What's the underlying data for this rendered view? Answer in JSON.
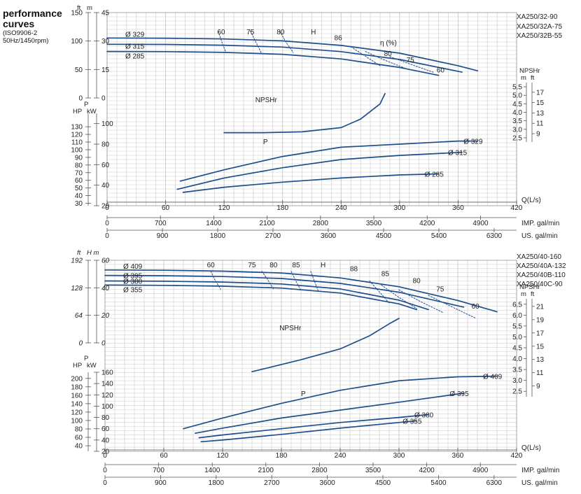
{
  "header": {
    "title_line1": "performance",
    "title_line2": "curves",
    "standard": "(ISO9906-2",
    "conditions": "50Hz/1450rpm)"
  },
  "colors": {
    "curve": "#1f4e8c",
    "grid": "#c8c8c8",
    "axis": "#555555",
    "text": "#222222"
  },
  "chart_data": [
    {
      "type": "line",
      "models": [
        "XA250/32-90",
        "XA250/32A-75",
        "XA250/32B-55"
      ],
      "x_units": {
        "label": "Q(L/s)",
        "ticks": [
          0,
          60,
          120,
          180,
          240,
          300,
          360,
          420
        ],
        "xlim": [
          0,
          420
        ]
      },
      "x_imp": {
        "label": "IMP. gal/min",
        "ticks": [
          0,
          700,
          1400,
          2100,
          2800,
          3500,
          4200,
          4900
        ]
      },
      "x_us": {
        "label": "US. gal/min",
        "ticks": [
          0,
          900,
          1800,
          2700,
          3600,
          4500,
          5400,
          6300
        ]
      },
      "head_axis": {
        "unit_ft": "ft",
        "unit_m": "m",
        "ft_ticks": [
          0,
          50,
          100,
          150
        ],
        "m_ticks": [
          0,
          15,
          30,
          45
        ],
        "ylim_m": [
          0,
          45
        ]
      },
      "power_axis": {
        "unit_hp": "HP",
        "unit_p": "P",
        "unit_kw": "kW",
        "hp_ticks": [
          30,
          40,
          50,
          60,
          70,
          80,
          90,
          100,
          110,
          120,
          130
        ],
        "kw_ticks": [
          20,
          40,
          60,
          80,
          100
        ],
        "ylim_kw": [
          20,
          110
        ]
      },
      "npsh_axis": {
        "label": "NPSHr",
        "unit_m": "m",
        "unit_ft": "ft",
        "m_ticks": [
          2.5,
          3.0,
          3.5,
          4.0,
          4.5,
          5.0,
          5.5
        ],
        "ft_ticks": [
          9,
          11,
          13,
          15,
          17
        ],
        "ylim_m": [
          2.25,
          5.75
        ]
      },
      "head_series": [
        {
          "name": "Ø 329",
          "x": [
            0,
            60,
            120,
            180,
            240,
            300,
            360,
            380
          ],
          "y": [
            31.6,
            31.5,
            31.1,
            30.1,
            27.7,
            23.6,
            17.0,
            14.3
          ]
        },
        {
          "name": "Ø 315",
          "x": [
            0,
            60,
            120,
            180,
            240,
            300,
            364
          ],
          "y": [
            28.3,
            28.2,
            27.8,
            26.8,
            24.4,
            20.3,
            13.6
          ]
        },
        {
          "name": "Ø 285",
          "x": [
            0,
            60,
            120,
            180,
            240,
            300,
            340
          ],
          "y": [
            24.5,
            24.4,
            24.0,
            23.0,
            20.6,
            16.1,
            11.9
          ]
        }
      ],
      "power_series": [
        {
          "name": "Ø 329",
          "x": [
            75,
            120,
            180,
            240,
            300,
            360,
            380
          ],
          "y": [
            44,
            55,
            68,
            77,
            80,
            83,
            83
          ]
        },
        {
          "name": "Ø 315",
          "x": [
            72,
            120,
            180,
            240,
            300,
            364
          ],
          "y": [
            36,
            47,
            57,
            65,
            69,
            72
          ]
        },
        {
          "name": "Ø 285",
          "x": [
            78,
            120,
            180,
            240,
            300,
            340
          ],
          "y": [
            33,
            38,
            43,
            47,
            50,
            51
          ]
        }
      ],
      "npsh_series": [
        {
          "name": "NPSHr",
          "x": [
            120,
            160,
            200,
            240,
            260,
            280,
            285
          ],
          "y": [
            2.8,
            2.8,
            2.85,
            3.1,
            3.6,
            4.5,
            5.1
          ]
        }
      ],
      "efficiency_lines": [
        {
          "label": "60",
          "x": [
            114,
            118,
            122
          ],
          "y": [
            35.2,
            29.0,
            23.9
          ]
        },
        {
          "label": "75",
          "x": [
            147,
            153,
            158
          ],
          "y": [
            35.2,
            29.0,
            23.9
          ]
        },
        {
          "label": "80",
          "x": [
            177,
            184,
            191
          ],
          "y": [
            35.2,
            29.0,
            23.9
          ]
        },
        {
          "label": "80",
          "x": [
            250,
            265,
            280
          ],
          "y": [
            27.0,
            22.0,
            17.0
          ]
        },
        {
          "label": "75",
          "x": [
            265,
            282,
            305
          ],
          "y": [
            24.5,
            20.5,
            15.8
          ]
        },
        {
          "label": "60",
          "x": [
            290,
            310,
            335
          ],
          "y": [
            21.8,
            18.0,
            13.5
          ]
        }
      ],
      "labels": {
        "H": "H",
        "P": "P",
        "eta": "η (%)",
        "NPSHr": "NPSHr",
        "eta_86": "86",
        "eta_80": "80",
        "eta_75": "75",
        "eta_60": "60"
      }
    },
    {
      "type": "line",
      "models": [
        "XA250/40-160",
        "XA250/40A-132",
        "XA250/40B-110",
        "XA250/40C-90"
      ],
      "x_units": {
        "label": "Q(L/s)",
        "ticks": [
          0,
          60,
          120,
          180,
          240,
          300,
          360,
          420
        ],
        "xlim": [
          0,
          420
        ]
      },
      "x_imp": {
        "label": "IMP. gal/min",
        "ticks": [
          0,
          700,
          1400,
          2100,
          2800,
          3500,
          4200,
          4900
        ]
      },
      "x_us": {
        "label": "US. gal/min",
        "ticks": [
          0,
          900,
          1800,
          2700,
          3600,
          4500,
          5400,
          6300
        ]
      },
      "head_axis": {
        "unit_ft": "ft",
        "unit_m": "H m",
        "ft_ticks": [
          0,
          64,
          128,
          192
        ],
        "m_ticks": [
          0,
          20,
          40,
          60
        ],
        "ylim_m": [
          0,
          60
        ]
      },
      "power_axis": {
        "unit_hp": "HP",
        "unit_p": "P",
        "unit_kw": "kW",
        "hp_ticks": [
          40,
          60,
          80,
          100,
          120,
          140,
          160,
          180,
          200
        ],
        "kw_ticks": [
          20,
          40,
          60,
          80,
          100,
          120,
          140,
          160
        ],
        "ylim_kw": [
          20,
          160
        ]
      },
      "npsh_axis": {
        "label": "NPSHr",
        "unit_m": "m",
        "unit_ft": "ft",
        "m_ticks": [
          2.5,
          3.0,
          3.5,
          4.0,
          4.5,
          5.0,
          5.5,
          6.0,
          6.5
        ],
        "ft_ticks": [
          9,
          11,
          13,
          15,
          17,
          19,
          21
        ],
        "ylim_m": [
          2.25,
          6.75
        ]
      },
      "head_series": [
        {
          "name": "Ø 409",
          "x": [
            0,
            60,
            120,
            180,
            240,
            300,
            360,
            400
          ],
          "y": [
            53.0,
            52.8,
            52.1,
            50.8,
            47.2,
            40.8,
            30.8,
            22.6
          ]
        },
        {
          "name": "Ø 395",
          "x": [
            0,
            60,
            120,
            180,
            240,
            300,
            366
          ],
          "y": [
            49.0,
            48.8,
            48.2,
            46.8,
            43.2,
            36.8,
            26.0
          ]
        },
        {
          "name": "Ø 380",
          "x": [
            0,
            60,
            120,
            180,
            240,
            300,
            330
          ],
          "y": [
            45.0,
            44.8,
            44.2,
            42.8,
            39.2,
            31.0,
            24.2
          ]
        },
        {
          "name": "Ø 355",
          "x": [
            0,
            60,
            120,
            180,
            240,
            300,
            318
          ],
          "y": [
            42.0,
            41.8,
            41.2,
            39.8,
            36.2,
            28.3,
            24.2
          ]
        }
      ],
      "power_series": [
        {
          "name": "Ø 409",
          "x": [
            80,
            120,
            180,
            240,
            300,
            360,
            400
          ],
          "y": [
            60,
            79,
            105,
            128,
            145,
            152,
            153
          ]
        },
        {
          "name": "Ø 395",
          "x": [
            92,
            120,
            180,
            240,
            300,
            366
          ],
          "y": [
            52,
            61,
            79,
            93,
            107,
            123
          ]
        },
        {
          "name": "Ø 380",
          "x": [
            96,
            120,
            180,
            240,
            300,
            330
          ],
          "y": [
            44,
            49,
            60,
            71,
            80,
            85
          ]
        },
        {
          "name": "Ø 355",
          "x": [
            98,
            120,
            180,
            240,
            300,
            318
          ],
          "y": [
            37,
            40,
            50,
            61,
            71,
            74
          ]
        }
      ],
      "npsh_series": [
        {
          "name": "NPSHr",
          "x": [
            150,
            200,
            240,
            270,
            290,
            300
          ],
          "y": [
            3.4,
            3.95,
            4.45,
            5.05,
            5.6,
            5.85
          ]
        }
      ],
      "efficiency_lines": [
        {
          "label": "60",
          "x": [
            108,
            112,
            118
          ],
          "y": [
            52.0,
            46.0,
            39.0
          ]
        },
        {
          "label": "75",
          "x": [
            160,
            166,
            172
          ],
          "y": [
            52.0,
            46.0,
            39.0
          ]
        },
        {
          "label": "80",
          "x": [
            190,
            194,
            200
          ],
          "y": [
            52.0,
            46.0,
            38.0
          ]
        },
        {
          "label": "85",
          "x": [
            210,
            213,
            218
          ],
          "y": [
            52.0,
            46.0,
            37.0
          ]
        },
        {
          "label": "85",
          "x": [
            270,
            280,
            290
          ],
          "y": [
            45.0,
            37.0,
            29.0
          ]
        },
        {
          "label": "80",
          "x": [
            282,
            300,
            318
          ],
          "y": [
            42.0,
            33.0,
            25.0
          ]
        },
        {
          "label": "75",
          "x": [
            300,
            322,
            345
          ],
          "y": [
            38.5,
            30.0,
            22.0
          ]
        },
        {
          "label": "60",
          "x": [
            330,
            356,
            378
          ],
          "y": [
            34.5,
            25.5,
            18.0
          ]
        }
      ],
      "labels": {
        "H": "H",
        "P": "P",
        "NPSHr": "NPSHr",
        "eta_88": "88",
        "eta_85": "85",
        "eta_80": "80",
        "eta_75": "75",
        "eta_60": "60"
      }
    }
  ]
}
